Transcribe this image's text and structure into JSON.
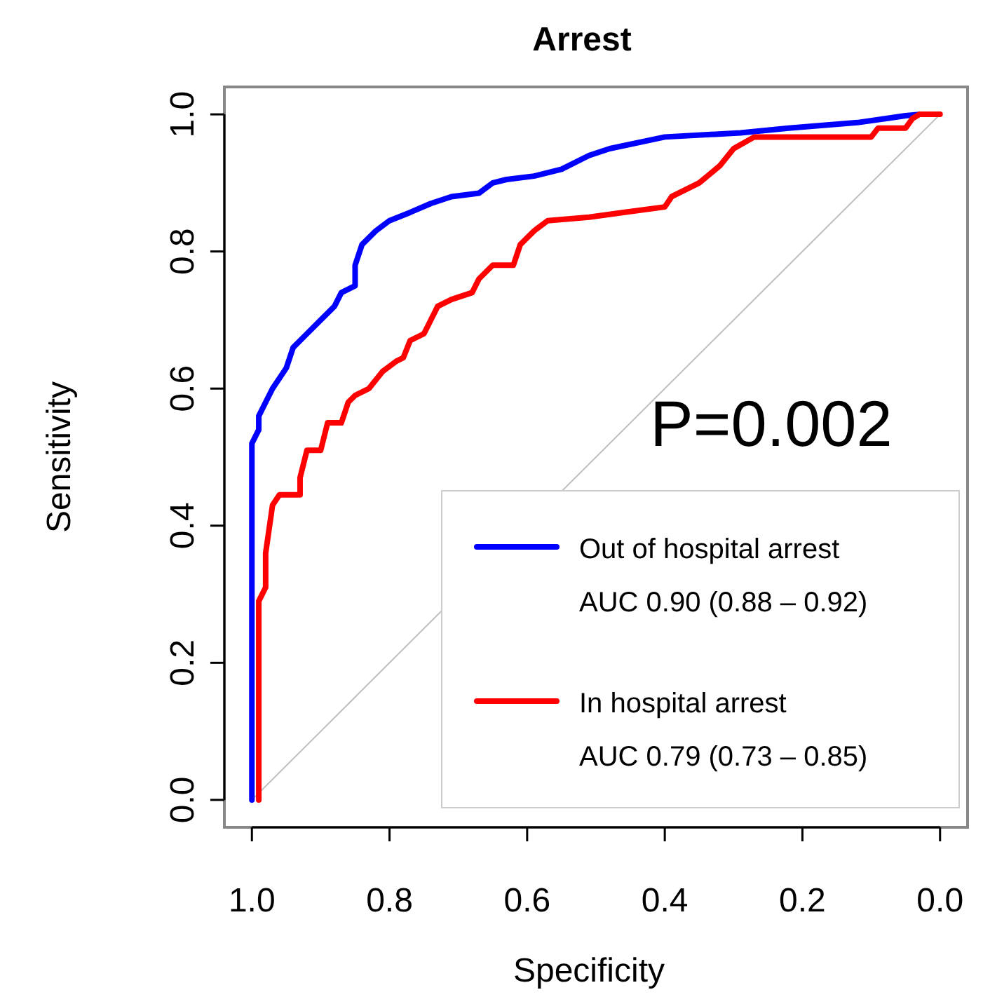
{
  "chart_data": {
    "type": "line",
    "title": "Arrest",
    "xlabel": "Specificity",
    "ylabel": "Sensitivity",
    "xlim": [
      1.04,
      -0.04
    ],
    "ylim": [
      -0.04,
      1.04
    ],
    "xticks": [
      {
        "value": 1,
        "label": "1.0"
      },
      {
        "value": 0.8,
        "label": "0.8"
      },
      {
        "value": 0.6,
        "label": "0.6"
      },
      {
        "value": 0.4,
        "label": "0.4"
      },
      {
        "value": 0.2,
        "label": "0.2"
      },
      {
        "value": 0,
        "label": "0.0"
      }
    ],
    "yticks": [
      {
        "value": 0,
        "label": "0.0"
      },
      {
        "value": 0.2,
        "label": "0.2"
      },
      {
        "value": 0.4,
        "label": "0.4"
      },
      {
        "value": 0.6,
        "label": "0.6"
      },
      {
        "value": 0.8,
        "label": "0.8"
      },
      {
        "value": 1,
        "label": "1.0"
      }
    ],
    "series": [
      {
        "color": "#bebebe",
        "x": [
          1,
          0
        ],
        "values": [
          0,
          1
        ]
      },
      {
        "name": "Out of hospital arrest\nAUC 0.90 (0.88 – 0.92)",
        "color": "#0000ff",
        "x": [
          1,
          1,
          0.99,
          0.99,
          0.98,
          0.97,
          0.95,
          0.94,
          0.92,
          0.9,
          0.88,
          0.87,
          0.85,
          0.85,
          0.84,
          0.82,
          0.8,
          0.77,
          0.74,
          0.71,
          0.67,
          0.65,
          0.63,
          0.59,
          0.55,
          0.51,
          0.48,
          0.4,
          0.29,
          0.22,
          0.12,
          0.05,
          0.03
        ],
        "values": [
          0,
          0.52,
          0.54,
          0.56,
          0.58,
          0.6,
          0.63,
          0.66,
          0.68,
          0.7,
          0.72,
          0.74,
          0.75,
          0.78,
          0.81,
          0.83,
          0.845,
          0.857,
          0.87,
          0.88,
          0.885,
          0.9,
          0.905,
          0.91,
          0.92,
          0.94,
          0.95,
          0.967,
          0.973,
          0.98,
          0.988,
          0.998,
          1
        ]
      },
      {
        "name": "In hospital arrest\nAUC 0.79 (0.73 – 0.85)",
        "color": "#ff0000",
        "x": [
          0.99,
          0.99,
          0.98,
          0.98,
          0.97,
          0.96,
          0.93,
          0.93,
          0.92,
          0.9,
          0.89,
          0.87,
          0.86,
          0.85,
          0.83,
          0.81,
          0.79,
          0.78,
          0.77,
          0.75,
          0.74,
          0.73,
          0.71,
          0.68,
          0.67,
          0.65,
          0.62,
          0.61,
          0.59,
          0.57,
          0.51,
          0.46,
          0.4,
          0.39,
          0.37,
          0.35,
          0.32,
          0.3,
          0.27,
          0.1,
          0.09,
          0.05,
          0.04,
          0.03,
          0
        ],
        "values": [
          0,
          0.29,
          0.31,
          0.36,
          0.43,
          0.445,
          0.445,
          0.47,
          0.51,
          0.51,
          0.55,
          0.55,
          0.58,
          0.59,
          0.6,
          0.625,
          0.64,
          0.645,
          0.67,
          0.68,
          0.7,
          0.72,
          0.73,
          0.74,
          0.76,
          0.78,
          0.78,
          0.81,
          0.83,
          0.845,
          0.85,
          0.857,
          0.865,
          0.88,
          0.89,
          0.9,
          0.925,
          0.95,
          0.967,
          0.967,
          0.98,
          0.98,
          0.994,
          1,
          1
        ]
      }
    ],
    "annotations": [
      "P=0.002"
    ],
    "legend": "bottom right",
    "grid": false
  }
}
